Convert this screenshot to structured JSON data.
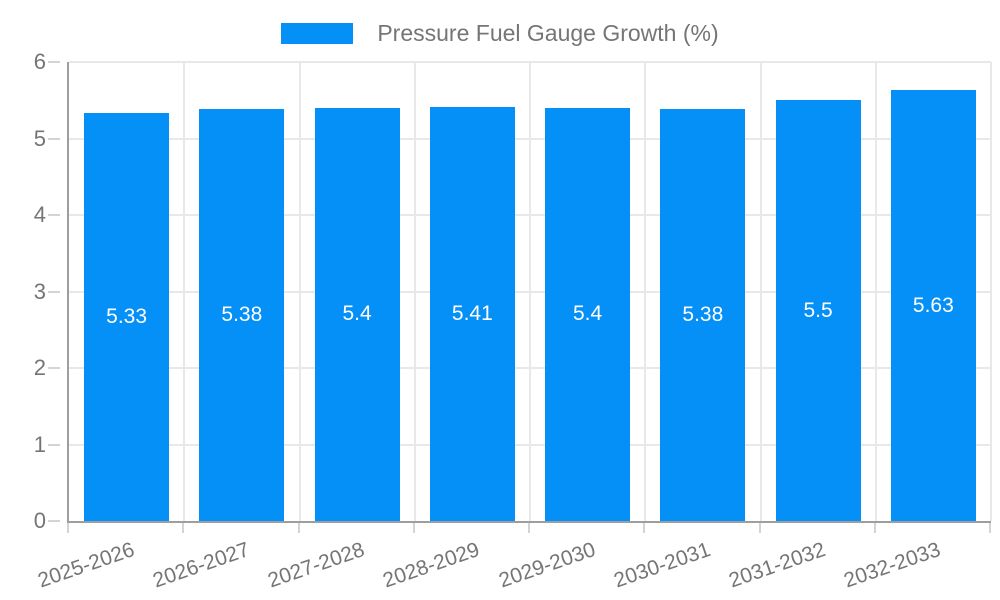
{
  "chart_data": {
    "type": "bar",
    "title": "Pressure Fuel Gauge Growth (%)",
    "categories": [
      "2025-2026",
      "2026-2027",
      "2027-2028",
      "2028-2029",
      "2029-2030",
      "2030-2031",
      "2031-2032",
      "2032-2033"
    ],
    "values": [
      5.33,
      5.38,
      5.4,
      5.41,
      5.4,
      5.38,
      5.5,
      5.63
    ],
    "value_labels": [
      "5.33",
      "5.38",
      "5.4",
      "5.41",
      "5.4",
      "5.38",
      "5.5",
      "5.63"
    ],
    "xlabel": "",
    "ylabel": "",
    "ylim": [
      0,
      6
    ],
    "yticks": [
      0,
      1,
      2,
      3,
      4,
      5,
      6
    ],
    "grid": true,
    "legend_position": "top-center",
    "bar_label_position": "center",
    "colors": {
      "bar": "#0590f8",
      "bar_label": "#ffffff",
      "axis_line": "#9e9e9e",
      "grid_line": "#e8e8e8",
      "tick_mark": "#d4d4d4",
      "tick_label": "#757575",
      "legend_text": "#757575",
      "background": "#ffffff"
    }
  }
}
